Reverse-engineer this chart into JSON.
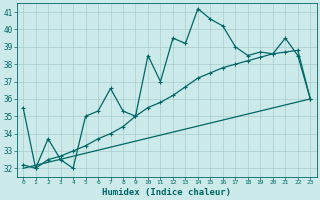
{
  "xlabel": "Humidex (Indice chaleur)",
  "background_color": "#cdeaea",
  "grid_color": "#aacccc",
  "line_color": "#006666",
  "xlim": [
    -0.5,
    23.5
  ],
  "ylim": [
    31.5,
    41.5
  ],
  "xticks": [
    0,
    1,
    2,
    3,
    4,
    5,
    6,
    7,
    8,
    9,
    10,
    11,
    12,
    13,
    14,
    15,
    16,
    17,
    18,
    19,
    20,
    21,
    22,
    23
  ],
  "yticks": [
    32,
    33,
    34,
    35,
    36,
    37,
    38,
    39,
    40,
    41
  ],
  "series1_x": [
    0,
    1,
    2,
    3,
    4,
    5,
    6,
    7,
    8,
    9,
    10,
    11,
    12,
    13,
    14,
    15,
    16,
    17,
    18,
    19,
    20,
    21,
    22,
    23
  ],
  "series1_y": [
    35.5,
    32.0,
    33.7,
    32.5,
    32.0,
    35.0,
    35.3,
    36.6,
    35.3,
    35.0,
    38.5,
    37.0,
    39.5,
    39.2,
    41.2,
    40.6,
    40.2,
    39.0,
    38.5,
    38.7,
    38.6,
    39.5,
    38.5,
    36.0
  ],
  "series2_x": [
    0,
    1,
    2,
    3,
    4,
    5,
    6,
    7,
    8,
    9,
    10,
    11,
    12,
    13,
    14,
    15,
    16,
    17,
    18,
    19,
    20,
    21,
    22,
    23
  ],
  "series2_y": [
    32.2,
    32.0,
    32.5,
    32.7,
    33.0,
    33.3,
    33.7,
    34.0,
    34.4,
    35.0,
    35.5,
    35.8,
    36.2,
    36.7,
    37.2,
    37.5,
    37.8,
    38.0,
    38.2,
    38.4,
    38.6,
    38.7,
    38.8,
    36.0
  ],
  "series3_x": [
    0,
    23
  ],
  "series3_y": [
    32.0,
    36.0
  ]
}
